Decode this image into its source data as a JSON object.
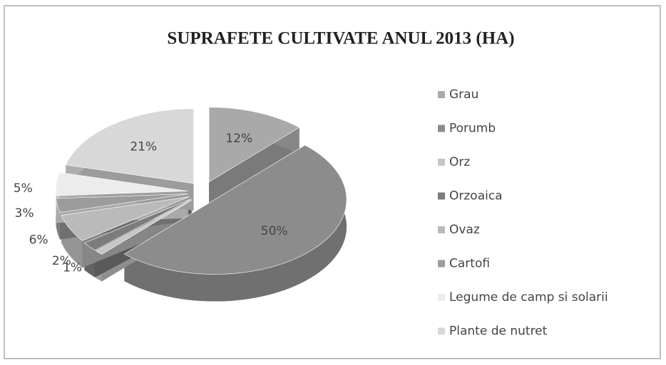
{
  "chart_data": {
    "type": "pie",
    "title": "SUPRAFETE CULTIVATE ANUL 2013 (HA)",
    "categories": [
      "Grau",
      "Porumb",
      "Orz",
      "Orzoaica",
      "Ovaz",
      "Cartofi",
      "Legume de camp si solarii",
      "Plante de nutret"
    ],
    "values": [
      12,
      50,
      1,
      2,
      6,
      3,
      5,
      21
    ],
    "value_labels": [
      "12%",
      "50%",
      "1%",
      "2%",
      "6%",
      "3%",
      "5%",
      "21%"
    ],
    "colors": [
      "#a9a9a9",
      "#8c8c8c",
      "#c6c6c6",
      "#7c7c7c",
      "#bababa",
      "#9c9c9c",
      "#ececec",
      "#d8d8d8"
    ],
    "legend": "right"
  }
}
